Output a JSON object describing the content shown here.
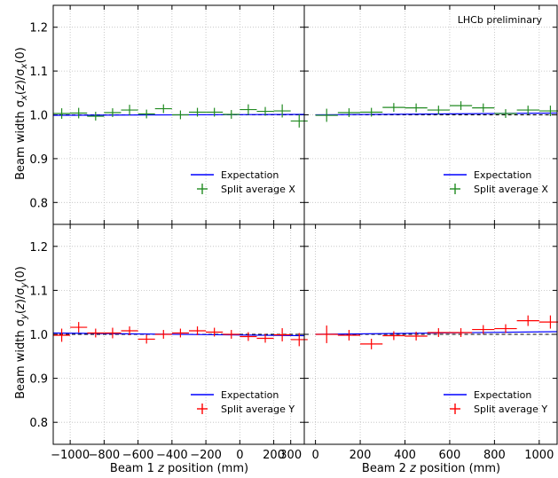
{
  "figure": {
    "annotation": "LHCb preliminary",
    "ylabel_top": "Beam width σx(z)/σx(0)",
    "ylabel_bottom": "Beam width σy(z)/σy(0)",
    "xlabel_left": "Beam 1 z position (mm)",
    "xlabel_right": "Beam 2 z position (mm)"
  },
  "chart_data": [
    {
      "panel": "top-left",
      "type": "scatter",
      "xlim": [
        -1100,
        380
      ],
      "ylim": [
        0.75,
        1.25
      ],
      "grid": true,
      "yticks": [
        0.8,
        0.9,
        1.0,
        1.1,
        1.2
      ],
      "ytick_labels": [
        "0.8",
        "0.9",
        "1.0",
        "1.1",
        "1.2"
      ],
      "xticks": [
        -1000,
        -800,
        -600,
        -400,
        -200,
        0,
        200
      ],
      "expectation": {
        "name": "Expectation",
        "color": "#0000ff",
        "x": [
          -1100,
          380
        ],
        "y": [
          0.999,
          1.001
        ]
      },
      "reference_dashed": {
        "color": "#000000",
        "x": [
          -1100,
          380
        ],
        "y": [
          1.0,
          1.0
        ]
      },
      "series": [
        {
          "name": "Split average X",
          "color": "#228b22",
          "x": [
            -1050,
            -950,
            -850,
            -750,
            -650,
            -550,
            -450,
            -350,
            -250,
            -150,
            -50,
            50,
            150,
            250,
            350
          ],
          "y": [
            1.003,
            1.004,
            0.997,
            1.005,
            1.011,
            1.002,
            1.014,
            1.0,
            1.006,
            1.006,
            1.001,
            1.012,
            1.008,
            1.009,
            0.986
          ],
          "xerr": 50,
          "yerr": [
            0.012,
            0.012,
            0.01,
            0.01,
            0.012,
            0.01,
            0.01,
            0.01,
            0.01,
            0.01,
            0.01,
            0.012,
            0.01,
            0.015,
            0.015
          ]
        }
      ],
      "legend": {
        "placement": "lower-right",
        "entries": [
          "Expectation",
          "Split average X"
        ]
      }
    },
    {
      "panel": "top-right",
      "type": "scatter",
      "xlim": [
        -50,
        1080
      ],
      "ylim": [
        0.75,
        1.25
      ],
      "grid": true,
      "xticks": [
        200,
        400,
        600,
        800,
        1000
      ],
      "expectation": {
        "name": "Expectation",
        "color": "#0000ff",
        "x": [
          0,
          1080
        ],
        "y": [
          1.0,
          1.004
        ]
      },
      "reference_dashed": {
        "color": "#000000",
        "x": [
          0,
          1080
        ],
        "y": [
          1.0,
          1.0
        ]
      },
      "series": [
        {
          "name": "Split average X",
          "color": "#228b22",
          "x": [
            50,
            150,
            250,
            350,
            450,
            550,
            650,
            750,
            850,
            950,
            1050
          ],
          "y": [
            0.999,
            1.005,
            1.006,
            1.017,
            1.016,
            1.011,
            1.021,
            1.016,
            1.003,
            1.011,
            1.009
          ],
          "xerr": 50,
          "yerr": [
            0.015,
            0.01,
            0.01,
            0.01,
            0.01,
            0.01,
            0.01,
            0.01,
            0.01,
            0.01,
            0.012
          ]
        }
      ],
      "annotation": "LHCb preliminary",
      "legend": {
        "placement": "lower-right",
        "entries": [
          "Expectation",
          "Split average X"
        ]
      }
    },
    {
      "panel": "bottom-left",
      "type": "scatter",
      "xlim": [
        -1100,
        380
      ],
      "ylim": [
        0.75,
        1.25
      ],
      "grid": true,
      "yticks": [
        0.8,
        0.9,
        1.0,
        1.1,
        1.2
      ],
      "ytick_labels": [
        "0.8",
        "0.9",
        "1.0",
        "1.1",
        "1.2"
      ],
      "xticks": [
        -1000,
        -800,
        -600,
        -400,
        -200,
        0,
        200,
        300
      ],
      "xtick_labels": [
        "−1000",
        "−800",
        "−600",
        "−400",
        "−200",
        "0",
        "200",
        "300"
      ],
      "expectation": {
        "name": "Expectation",
        "color": "#0000ff",
        "x": [
          -1100,
          380
        ],
        "y": [
          1.003,
          0.997
        ]
      },
      "reference_dashed": {
        "color": "#000000",
        "x": [
          -1100,
          380
        ],
        "y": [
          1.0,
          1.0
        ]
      },
      "series": [
        {
          "name": "Split average Y",
          "color": "#ff0000",
          "x": [
            -1050,
            -950,
            -850,
            -750,
            -650,
            -550,
            -450,
            -350,
            -250,
            -150,
            -50,
            50,
            150,
            250,
            350
          ],
          "y": [
            0.998,
            1.016,
            1.003,
            1.003,
            1.008,
            0.989,
            1.0,
            1.003,
            1.008,
            1.005,
            1.0,
            0.995,
            0.991,
            0.999,
            0.988
          ],
          "xerr": 50,
          "yerr": [
            0.015,
            0.012,
            0.01,
            0.012,
            0.01,
            0.01,
            0.01,
            0.01,
            0.01,
            0.01,
            0.01,
            0.01,
            0.01,
            0.015,
            0.015
          ]
        }
      ],
      "legend": {
        "placement": "lower-right",
        "entries": [
          "Expectation",
          "Split average Y"
        ]
      }
    },
    {
      "panel": "bottom-right",
      "type": "scatter",
      "xlim": [
        -50,
        1080
      ],
      "ylim": [
        0.75,
        1.25
      ],
      "grid": true,
      "xticks": [
        0,
        200,
        400,
        600,
        800,
        1000
      ],
      "xtick_labels": [
        "0",
        "200",
        "400",
        "600",
        "800",
        "1000"
      ],
      "expectation": {
        "name": "Expectation",
        "color": "#0000ff",
        "x": [
          0,
          1080
        ],
        "y": [
          1.0,
          1.006
        ]
      },
      "reference_dashed": {
        "color": "#000000",
        "x": [
          0,
          1080
        ],
        "y": [
          1.0,
          1.0
        ]
      },
      "series": [
        {
          "name": "Split average Y",
          "color": "#ff0000",
          "x": [
            50,
            150,
            250,
            350,
            450,
            550,
            650,
            750,
            850,
            950,
            1050
          ],
          "y": [
            1.0,
            0.998,
            0.978,
            0.997,
            0.996,
            1.004,
            1.004,
            1.011,
            1.013,
            1.031,
            1.028
          ],
          "xerr": 50,
          "yerr": [
            0.02,
            0.012,
            0.012,
            0.01,
            0.01,
            0.01,
            0.01,
            0.01,
            0.01,
            0.012,
            0.015
          ]
        }
      ],
      "legend": {
        "placement": "lower-right",
        "entries": [
          "Expectation",
          "Split average Y"
        ]
      }
    }
  ]
}
